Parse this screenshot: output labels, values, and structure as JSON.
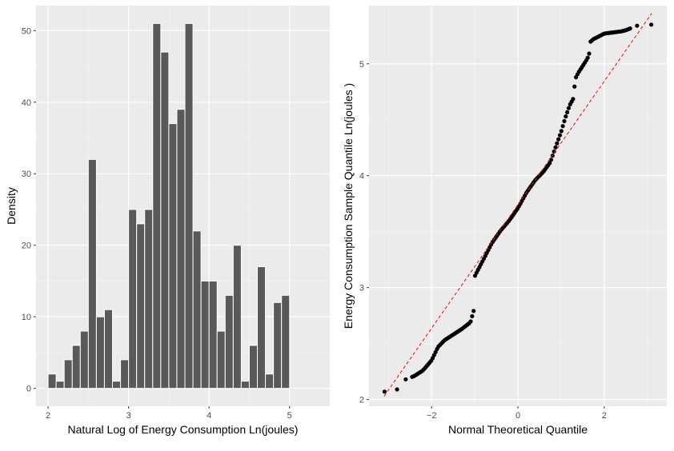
{
  "chart_data": [
    {
      "type": "bar",
      "title": "",
      "xlabel": "Natural Log of Energy Consumption Ln(joules)",
      "ylabel": "Density",
      "xlim": [
        1.85,
        5.5
      ],
      "ylim": [
        -2.5,
        53.5
      ],
      "x_ticks": [
        2,
        3,
        4,
        5
      ],
      "y_ticks": [
        0,
        10,
        20,
        30,
        40,
        50
      ],
      "bin_width": 0.1,
      "bins": [
        {
          "center": 2.05,
          "count": 2
        },
        {
          "center": 2.15,
          "count": 1
        },
        {
          "center": 2.25,
          "count": 4
        },
        {
          "center": 2.35,
          "count": 6
        },
        {
          "center": 2.45,
          "count": 8
        },
        {
          "center": 2.55,
          "count": 32
        },
        {
          "center": 2.65,
          "count": 10
        },
        {
          "center": 2.75,
          "count": 11
        },
        {
          "center": 2.85,
          "count": 1
        },
        {
          "center": 2.95,
          "count": 4
        },
        {
          "center": 3.05,
          "count": 25
        },
        {
          "center": 3.15,
          "count": 23
        },
        {
          "center": 3.25,
          "count": 25
        },
        {
          "center": 3.35,
          "count": 51
        },
        {
          "center": 3.45,
          "count": 47
        },
        {
          "center": 3.55,
          "count": 37
        },
        {
          "center": 3.65,
          "count": 39
        },
        {
          "center": 3.75,
          "count": 51
        },
        {
          "center": 3.85,
          "count": 22
        },
        {
          "center": 3.95,
          "count": 15
        },
        {
          "center": 4.05,
          "count": 15
        },
        {
          "center": 4.15,
          "count": 8
        },
        {
          "center": 4.25,
          "count": 13
        },
        {
          "center": 4.35,
          "count": 20
        },
        {
          "center": 4.45,
          "count": 1
        },
        {
          "center": 4.55,
          "count": 6
        },
        {
          "center": 4.65,
          "count": 17
        },
        {
          "center": 4.75,
          "count": 2
        },
        {
          "center": 4.85,
          "count": 12
        },
        {
          "center": 4.95,
          "count": 13
        }
      ],
      "bar_color": "#595959",
      "panel_color": "#ebebeb",
      "grid": true
    },
    {
      "type": "scatter",
      "title": "",
      "xlabel": "Normal Theoretical Quantile",
      "ylabel": "Energy Consumption Sample Quantile Ln(joules )",
      "xlim": [
        -3.45,
        3.45
      ],
      "ylim": [
        1.94,
        5.52
      ],
      "x_ticks": [
        -2,
        0,
        2
      ],
      "y_ticks": [
        2,
        3,
        4,
        5
      ],
      "point_color": "#000000",
      "reference_line": {
        "color": "#ff0000",
        "style": "dashed",
        "from": [
          -3.1,
          2.03
        ],
        "to": [
          3.1,
          5.45
        ]
      },
      "points_summary": {
        "anchors_x": [
          -3.09,
          -2.8,
          -2.6,
          -2.4,
          -2.2,
          -2.0,
          -1.85,
          -1.7,
          -1.5,
          -1.3,
          -1.1,
          -1.02,
          -1.0,
          -0.95,
          -0.8,
          -0.6,
          -0.4,
          -0.2,
          0.0,
          0.2,
          0.4,
          0.6,
          0.75,
          0.85,
          1.0,
          1.1,
          1.2,
          1.3,
          1.32,
          1.4,
          1.5,
          1.6,
          1.65,
          1.66,
          1.75,
          1.9,
          2.0,
          2.2,
          2.4,
          2.5,
          2.76,
          3.09
        ],
        "anchors_y": [
          2.07,
          2.09,
          2.18,
          2.21,
          2.26,
          2.35,
          2.47,
          2.53,
          2.58,
          2.63,
          2.69,
          2.8,
          3.1,
          3.14,
          3.25,
          3.4,
          3.51,
          3.6,
          3.71,
          3.85,
          3.96,
          4.04,
          4.12,
          4.23,
          4.39,
          4.52,
          4.63,
          4.7,
          4.86,
          4.92,
          4.98,
          5.04,
          5.08,
          5.19,
          5.22,
          5.25,
          5.27,
          5.28,
          5.29,
          5.3,
          5.34,
          5.35
        ],
        "count": 150
      },
      "panel_color": "#ebebeb",
      "grid": true
    }
  ]
}
